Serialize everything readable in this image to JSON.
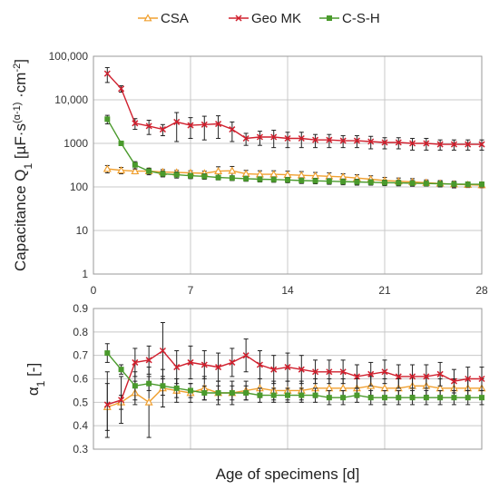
{
  "chart_data": [
    {
      "type": "line",
      "ylabel_main": "Capacitance Q",
      "ylabel_sub": "1",
      "ylabel_unit_open": " [µF·s",
      "ylabel_unit_sup": "(α-1)",
      "ylabel_unit_mid": " ·cm",
      "ylabel_unit_sup2": "-2",
      "ylabel_unit_close": "]",
      "yscale": "log",
      "ylim": [
        1,
        100000
      ],
      "yticks": [
        "1",
        "10",
        "100",
        "1000",
        "10,000",
        "100,000"
      ],
      "yticks_values": [
        1,
        10,
        100,
        1000,
        10000,
        100000
      ],
      "xlim": [
        0,
        28
      ],
      "xticks": [
        "0",
        "7",
        "14",
        "21",
        "28"
      ],
      "xticks_values": [
        0,
        7,
        14,
        21,
        28
      ],
      "grid": true,
      "x": [
        1,
        2,
        3,
        4,
        5,
        6,
        7,
        8,
        9,
        10,
        11,
        12,
        13,
        14,
        15,
        16,
        17,
        18,
        19,
        20,
        21,
        22,
        23,
        24,
        25,
        26,
        27,
        28
      ],
      "series": [
        {
          "name": "CSA",
          "color": "#f0a030",
          "marker": "triangle",
          "values": [
            260,
            240,
            230,
            230,
            220,
            215,
            210,
            205,
            230,
            235,
            200,
            195,
            195,
            190,
            185,
            180,
            175,
            170,
            160,
            150,
            140,
            135,
            130,
            125,
            120,
            115,
            112,
            110
          ],
          "err": [
            50,
            40,
            30,
            30,
            30,
            25,
            25,
            25,
            60,
            60,
            40,
            40,
            40,
            40,
            40,
            35,
            35,
            30,
            30,
            30,
            25,
            25,
            25,
            20,
            20,
            20,
            15,
            15
          ]
        },
        {
          "name": "Geo MK",
          "color": "#d0202e",
          "marker": "x",
          "values": [
            40000,
            18000,
            2900,
            2500,
            2100,
            3100,
            2600,
            2700,
            2800,
            2100,
            1300,
            1400,
            1400,
            1300,
            1300,
            1200,
            1200,
            1150,
            1150,
            1100,
            1050,
            1050,
            1000,
            1000,
            950,
            950,
            950,
            950
          ],
          "err": [
            15000,
            3000,
            800,
            900,
            600,
            2000,
            1300,
            1500,
            1500,
            1000,
            400,
            500,
            600,
            500,
            500,
            400,
            400,
            350,
            350,
            350,
            300,
            300,
            300,
            300,
            250,
            250,
            250,
            250
          ]
        },
        {
          "name": "C-S-H",
          "color": "#4a9a2c",
          "marker": "square",
          "values": [
            3600,
            1000,
            320,
            230,
            200,
            190,
            180,
            175,
            165,
            160,
            155,
            150,
            148,
            145,
            140,
            138,
            135,
            132,
            130,
            128,
            125,
            124,
            122,
            120,
            118,
            116,
            115,
            115
          ],
          "err": [
            800,
            80,
            60,
            40,
            30,
            30,
            25,
            25,
            20,
            20,
            20,
            20,
            20,
            20,
            20,
            20,
            20,
            20,
            20,
            18,
            18,
            18,
            18,
            15,
            15,
            15,
            15,
            15
          ]
        }
      ]
    },
    {
      "type": "line",
      "ylabel_main": "α",
      "ylabel_sub": "1",
      "ylabel_unit": " [-]",
      "ylim": [
        0.3,
        0.9
      ],
      "yticks": [
        "0.3",
        "0.4",
        "0.5",
        "0.6",
        "0.7",
        "0.8",
        "0.9"
      ],
      "yticks_values": [
        0.3,
        0.4,
        0.5,
        0.6,
        0.7,
        0.8,
        0.9
      ],
      "xlim": [
        0,
        28
      ],
      "xlabel": "Age of specimens [d]",
      "grid": true,
      "x": [
        1,
        2,
        3,
        4,
        5,
        6,
        7,
        8,
        9,
        10,
        11,
        12,
        13,
        14,
        15,
        16,
        17,
        18,
        19,
        20,
        21,
        22,
        23,
        24,
        25,
        26,
        27,
        28
      ],
      "series": [
        {
          "name": "CSA",
          "color": "#f0a030",
          "marker": "triangle",
          "values": [
            0.48,
            0.5,
            0.54,
            0.5,
            0.56,
            0.55,
            0.54,
            0.56,
            0.54,
            0.54,
            0.55,
            0.56,
            0.55,
            0.55,
            0.55,
            0.56,
            0.56,
            0.56,
            0.56,
            0.57,
            0.56,
            0.56,
            0.57,
            0.57,
            0.56,
            0.56,
            0.56,
            0.56
          ],
          "err": [
            0.1,
            0.03,
            0.05,
            0.15,
            0.08,
            0.05,
            0.04,
            0.05,
            0.05,
            0.05,
            0.04,
            0.04,
            0.04,
            0.04,
            0.04,
            0.04,
            0.04,
            0.04,
            0.04,
            0.04,
            0.04,
            0.04,
            0.04,
            0.04,
            0.04,
            0.04,
            0.04,
            0.04
          ]
        },
        {
          "name": "Geo MK",
          "color": "#d0202e",
          "marker": "x",
          "values": [
            0.49,
            0.51,
            0.67,
            0.68,
            0.72,
            0.65,
            0.67,
            0.66,
            0.65,
            0.67,
            0.7,
            0.66,
            0.64,
            0.65,
            0.64,
            0.63,
            0.63,
            0.63,
            0.61,
            0.62,
            0.63,
            0.61,
            0.61,
            0.61,
            0.62,
            0.59,
            0.6,
            0.6
          ],
          "err": [
            0.14,
            0.1,
            0.06,
            0.06,
            0.12,
            0.07,
            0.07,
            0.06,
            0.06,
            0.06,
            0.07,
            0.06,
            0.06,
            0.06,
            0.06,
            0.05,
            0.05,
            0.05,
            0.05,
            0.05,
            0.05,
            0.05,
            0.05,
            0.05,
            0.05,
            0.05,
            0.05,
            0.05
          ]
        },
        {
          "name": "C-S-H",
          "color": "#4a9a2c",
          "marker": "square",
          "values": [
            0.71,
            0.64,
            0.57,
            0.58,
            0.57,
            0.56,
            0.55,
            0.54,
            0.54,
            0.54,
            0.54,
            0.53,
            0.53,
            0.53,
            0.53,
            0.53,
            0.52,
            0.52,
            0.53,
            0.52,
            0.52,
            0.52,
            0.52,
            0.52,
            0.52,
            0.52,
            0.52,
            0.52
          ],
          "err": [
            0.04,
            0.02,
            0.06,
            0.03,
            0.04,
            0.04,
            0.03,
            0.03,
            0.03,
            0.03,
            0.03,
            0.03,
            0.03,
            0.03,
            0.03,
            0.03,
            0.03,
            0.03,
            0.03,
            0.03,
            0.03,
            0.03,
            0.03,
            0.03,
            0.03,
            0.03,
            0.03,
            0.03
          ]
        }
      ]
    }
  ],
  "legend": {
    "placement": "top-center",
    "items": [
      "CSA",
      "Geo MK",
      "C-S-H"
    ]
  }
}
